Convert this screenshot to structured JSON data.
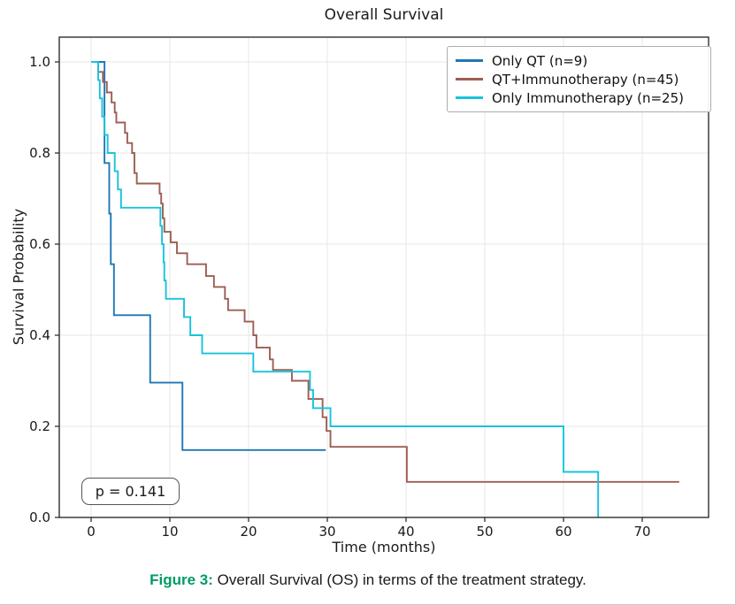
{
  "figure": {
    "caption_prefix": "Figure 3:",
    "caption_text": " Overall Survival (OS) in terms of the treatment strategy.",
    "caption_prefix_color": "#009B64"
  },
  "chart_data": {
    "type": "line",
    "subtype": "kaplan-meier-step",
    "title": "Overall Survival",
    "xlabel": "Time (months)",
    "ylabel": "Survival Probability",
    "annotation": "p = 0.141",
    "grid": true,
    "legend_position": "upper right",
    "xlim": [
      -4,
      78.4
    ],
    "ylim": [
      0,
      1.054
    ],
    "x_ticks": [
      0,
      10,
      20,
      30,
      40,
      50,
      60,
      70
    ],
    "y_ticks": [
      0.0,
      0.2,
      0.4,
      0.6,
      0.8,
      1.0
    ],
    "colors": {
      "axis": "#2f2f2f",
      "grid": "#e7e7e7",
      "tick_label": "#1a1a1a"
    },
    "series": [
      {
        "id": "only-qt",
        "name": "Only QT (n=9)",
        "n": 9,
        "color": "#1f77b4",
        "points": [
          [
            0,
            1.0
          ],
          [
            1.7,
            0.778
          ],
          [
            2.3,
            0.667
          ],
          [
            2.5,
            0.556
          ],
          [
            2.9,
            0.444
          ],
          [
            7.5,
            0.296
          ],
          [
            11.6,
            0.148
          ]
        ],
        "end_time": 29.8
      },
      {
        "id": "qt-immunotherapy",
        "name": "QT+Immunotherapy (n=45)",
        "n": 45,
        "color": "#9d5e53",
        "points": [
          [
            0,
            1.0
          ],
          [
            0.9,
            0.978
          ],
          [
            1.5,
            0.956
          ],
          [
            2.0,
            0.933
          ],
          [
            2.6,
            0.911
          ],
          [
            3.0,
            0.889
          ],
          [
            3.2,
            0.867
          ],
          [
            4.3,
            0.844
          ],
          [
            4.6,
            0.822
          ],
          [
            5.2,
            0.8
          ],
          [
            5.5,
            0.756
          ],
          [
            5.8,
            0.733
          ],
          [
            8.7,
            0.711
          ],
          [
            8.9,
            0.689
          ],
          [
            9.1,
            0.657
          ],
          [
            9.3,
            0.627
          ],
          [
            10.1,
            0.604
          ],
          [
            10.9,
            0.58
          ],
          [
            12.2,
            0.556
          ],
          [
            14.6,
            0.53
          ],
          [
            15.6,
            0.506
          ],
          [
            17.0,
            0.48
          ],
          [
            17.4,
            0.455
          ],
          [
            19.5,
            0.43
          ],
          [
            20.6,
            0.4
          ],
          [
            21.0,
            0.373
          ],
          [
            22.7,
            0.347
          ],
          [
            23.1,
            0.324
          ],
          [
            25.5,
            0.3
          ],
          [
            27.6,
            0.26
          ],
          [
            29.4,
            0.22
          ],
          [
            29.9,
            0.19
          ],
          [
            30.4,
            0.155
          ],
          [
            40.1,
            0.078
          ]
        ],
        "end_time": 74.7
      },
      {
        "id": "only-immunotherapy",
        "name": "Only Immunotherapy (n=25)",
        "n": 25,
        "color": "#17c3dc",
        "points": [
          [
            0,
            1.0
          ],
          [
            0.9,
            0.96
          ],
          [
            1.1,
            0.92
          ],
          [
            1.4,
            0.88
          ],
          [
            1.7,
            0.84
          ],
          [
            2.1,
            0.8
          ],
          [
            3.0,
            0.76
          ],
          [
            3.4,
            0.72
          ],
          [
            3.8,
            0.68
          ],
          [
            8.8,
            0.64
          ],
          [
            9.0,
            0.6
          ],
          [
            9.2,
            0.56
          ],
          [
            9.3,
            0.52
          ],
          [
            9.5,
            0.48
          ],
          [
            11.8,
            0.44
          ],
          [
            12.6,
            0.4
          ],
          [
            14.1,
            0.36
          ],
          [
            20.6,
            0.32
          ],
          [
            27.8,
            0.28
          ],
          [
            28.2,
            0.24
          ],
          [
            30.4,
            0.2
          ],
          [
            60.0,
            0.1
          ],
          [
            64.4,
            0.0
          ]
        ],
        "end_time": 64.4
      }
    ]
  }
}
